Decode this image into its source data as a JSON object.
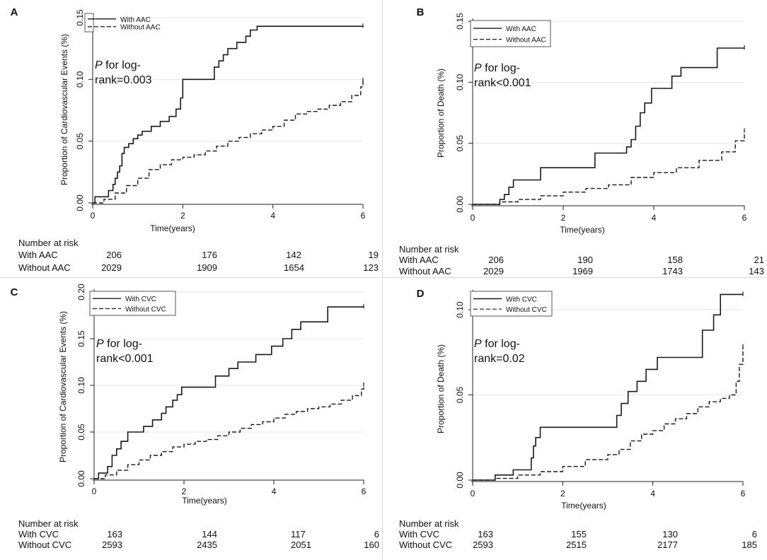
{
  "figure": {
    "panels": [
      {
        "id": "A",
        "letter": "A",
        "pvalue_italic": "P",
        "pvalue_line1": " for log-",
        "pvalue_line2": "rank=0.003",
        "risk_header": "Number at risk",
        "risk_rows": [
          {
            "label": "With AAC",
            "values": [
              "206",
              "176",
              "142",
              "19"
            ]
          },
          {
            "label": "Without AAC",
            "values": [
              "2029",
              "1909",
              "1654",
              "123"
            ]
          }
        ]
      },
      {
        "id": "B",
        "letter": "B",
        "pvalue_italic": "P",
        "pvalue_line1": " for log-",
        "pvalue_line2": "rank<0.001",
        "risk_header": "Number at risk",
        "risk_rows": [
          {
            "label": "With AAC",
            "values": [
              "206",
              "190",
              "158",
              "21"
            ]
          },
          {
            "label": "Without AAC",
            "values": [
              "2029",
              "1969",
              "1743",
              "143"
            ]
          }
        ]
      },
      {
        "id": "C",
        "letter": "C",
        "pvalue_italic": "P",
        "pvalue_line1": " for log-",
        "pvalue_line2": "rank<0.001",
        "risk_header": "Number at risk",
        "risk_rows": [
          {
            "label": "With CVC",
            "values": [
              "163",
              "144",
              "117",
              "6"
            ]
          },
          {
            "label": "Without CVC",
            "values": [
              "2593",
              "2435",
              "2051",
              "160"
            ]
          }
        ]
      },
      {
        "id": "D",
        "letter": "D",
        "pvalue_italic": "P",
        "pvalue_line1": " for log-",
        "pvalue_line2": "rank=0.02",
        "risk_header": "Number at risk",
        "risk_rows": [
          {
            "label": "With CVC",
            "values": [
              "163",
              "155",
              "130",
              "6"
            ]
          },
          {
            "label": "Without CVC",
            "values": [
              "2593",
              "2515",
              "2177",
              "185"
            ]
          }
        ]
      }
    ]
  },
  "chart_data": [
    {
      "panel": "A",
      "type": "line",
      "step": true,
      "xlabel": "Time(years)",
      "ylabel": "Proportion of Cardiovascular Events (%)",
      "xlim": [
        0,
        6
      ],
      "ylim": [
        0,
        0.15
      ],
      "xticks": [
        0,
        2,
        4,
        6
      ],
      "yticks": [
        0,
        0.05,
        0.1,
        0.15
      ],
      "ytick_labels": [
        "0.00",
        "0.05",
        "0.10",
        "0.15"
      ],
      "legend_position": "top-left",
      "series": [
        {
          "name": "With AAC",
          "style": "solid",
          "x": [
            0,
            0.05,
            0.35,
            0.45,
            0.5,
            0.55,
            0.6,
            0.65,
            0.7,
            0.8,
            0.9,
            1.0,
            1.1,
            1.3,
            1.5,
            1.7,
            1.85,
            1.95,
            2.0,
            2.55,
            2.7,
            2.8,
            2.9,
            3.0,
            3.2,
            3.4,
            3.5,
            3.65,
            6.0
          ],
          "y": [
            0,
            0.005,
            0.01,
            0.015,
            0.02,
            0.025,
            0.03,
            0.04,
            0.045,
            0.048,
            0.052,
            0.055,
            0.058,
            0.062,
            0.066,
            0.07,
            0.076,
            0.085,
            0.1,
            0.1,
            0.11,
            0.115,
            0.12,
            0.125,
            0.13,
            0.135,
            0.14,
            0.143,
            0.143
          ]
        },
        {
          "name": "Without AAC",
          "style": "dashed",
          "x": [
            0,
            0.25,
            0.5,
            0.75,
            1.0,
            1.25,
            1.5,
            1.75,
            2.0,
            2.25,
            2.5,
            2.75,
            3.0,
            3.25,
            3.5,
            3.75,
            4.0,
            4.25,
            4.5,
            4.75,
            5.0,
            5.25,
            5.5,
            5.75,
            5.95,
            6.0
          ],
          "y": [
            0,
            0.003,
            0.008,
            0.014,
            0.02,
            0.027,
            0.031,
            0.035,
            0.037,
            0.039,
            0.042,
            0.046,
            0.05,
            0.053,
            0.056,
            0.059,
            0.062,
            0.067,
            0.072,
            0.074,
            0.076,
            0.079,
            0.082,
            0.087,
            0.094,
            0.099
          ]
        }
      ]
    },
    {
      "panel": "B",
      "type": "line",
      "step": true,
      "xlabel": "Time(years)",
      "ylabel": "Proportion of Death (%)",
      "xlim": [
        0,
        6
      ],
      "ylim": [
        0,
        0.15
      ],
      "xticks": [
        0,
        2,
        4,
        6
      ],
      "yticks": [
        0,
        0.05,
        0.1,
        0.15
      ],
      "ytick_labels": [
        "0.00",
        "0.05",
        "0.10",
        "0.15"
      ],
      "legend_position": "top-left",
      "series": [
        {
          "name": "With AAC",
          "style": "solid",
          "x": [
            0,
            0.6,
            0.7,
            0.8,
            0.9,
            1.5,
            2.7,
            3.4,
            3.5,
            3.6,
            3.7,
            3.8,
            3.95,
            4.1,
            4.4,
            4.6,
            5.4,
            6.0
          ],
          "y": [
            0,
            0.004,
            0.008,
            0.014,
            0.02,
            0.03,
            0.042,
            0.047,
            0.053,
            0.064,
            0.075,
            0.083,
            0.095,
            0.095,
            0.105,
            0.112,
            0.128,
            0.128
          ]
        },
        {
          "name": "Without AAC",
          "style": "dashed",
          "x": [
            0,
            0.6,
            1.0,
            1.5,
            2.0,
            2.5,
            3.0,
            3.5,
            4.0,
            4.5,
            5.0,
            5.5,
            5.8,
            6.0
          ],
          "y": [
            0,
            0.002,
            0.004,
            0.007,
            0.01,
            0.013,
            0.016,
            0.022,
            0.026,
            0.03,
            0.036,
            0.043,
            0.052,
            0.06
          ]
        }
      ]
    },
    {
      "panel": "C",
      "type": "line",
      "step": true,
      "xlabel": "Time(years)",
      "ylabel": "Proportion of Cardiovascular Events (%)",
      "xlim": [
        0,
        6
      ],
      "ylim": [
        0,
        0.2
      ],
      "xticks": [
        0,
        2,
        4,
        6
      ],
      "yticks": [
        0,
        0.05,
        0.1,
        0.15,
        0.2
      ],
      "ytick_labels": [
        "0.00",
        "0.05",
        "0.10",
        "0.15",
        "0.20"
      ],
      "legend_position": "top-left",
      "series": [
        {
          "name": "With CVC",
          "style": "solid",
          "x": [
            0,
            0.1,
            0.3,
            0.4,
            0.5,
            0.6,
            0.75,
            1.1,
            1.3,
            1.5,
            1.6,
            1.75,
            1.85,
            1.95,
            2.7,
            3.0,
            3.2,
            3.6,
            3.95,
            4.2,
            4.4,
            4.6,
            5.2,
            6.0
          ],
          "y": [
            0,
            0.006,
            0.013,
            0.025,
            0.032,
            0.04,
            0.05,
            0.056,
            0.063,
            0.07,
            0.077,
            0.084,
            0.09,
            0.098,
            0.11,
            0.118,
            0.125,
            0.133,
            0.142,
            0.15,
            0.16,
            0.168,
            0.184,
            0.184
          ]
        },
        {
          "name": "Without CVC",
          "style": "dashed",
          "x": [
            0,
            0.25,
            0.5,
            0.75,
            1.0,
            1.25,
            1.5,
            1.75,
            2.0,
            2.25,
            2.5,
            2.75,
            3.0,
            3.25,
            3.5,
            3.75,
            4.0,
            4.25,
            4.5,
            4.75,
            5.0,
            5.25,
            5.5,
            5.75,
            5.95,
            6.0
          ],
          "y": [
            0,
            0.004,
            0.009,
            0.015,
            0.02,
            0.025,
            0.029,
            0.034,
            0.037,
            0.04,
            0.042,
            0.046,
            0.05,
            0.054,
            0.058,
            0.061,
            0.065,
            0.069,
            0.072,
            0.075,
            0.077,
            0.08,
            0.084,
            0.089,
            0.096,
            0.1
          ]
        }
      ]
    },
    {
      "panel": "D",
      "type": "line",
      "step": true,
      "xlabel": "Time(years)",
      "ylabel": "Proportion of Death (%)",
      "xlim": [
        0,
        6
      ],
      "ylim": [
        0,
        0.11
      ],
      "xticks": [
        0,
        2,
        4,
        6
      ],
      "yticks": [
        0,
        0.05,
        0.1
      ],
      "ytick_labels": [
        "0.00",
        "0.05",
        "0.10"
      ],
      "legend_position": "top-left",
      "series": [
        {
          "name": "With CVC",
          "style": "solid",
          "x": [
            0,
            0.5,
            0.9,
            1.3,
            1.35,
            1.4,
            1.5,
            3.2,
            3.3,
            3.45,
            3.65,
            3.85,
            4.1,
            5.1,
            5.35,
            5.5,
            6.0
          ],
          "y": [
            0,
            0.003,
            0.006,
            0.013,
            0.02,
            0.025,
            0.031,
            0.038,
            0.045,
            0.052,
            0.058,
            0.065,
            0.072,
            0.088,
            0.097,
            0.109,
            0.109
          ]
        },
        {
          "name": "Without CVC",
          "style": "dashed",
          "x": [
            0,
            0.5,
            1.0,
            1.5,
            2.0,
            2.5,
            3.0,
            3.25,
            3.5,
            3.75,
            4.0,
            4.25,
            4.5,
            4.75,
            5.0,
            5.25,
            5.5,
            5.7,
            5.85,
            5.92,
            6.0
          ],
          "y": [
            0,
            0.001,
            0.003,
            0.005,
            0.008,
            0.012,
            0.015,
            0.018,
            0.023,
            0.027,
            0.029,
            0.033,
            0.036,
            0.039,
            0.043,
            0.046,
            0.048,
            0.05,
            0.058,
            0.068,
            0.078
          ]
        }
      ]
    }
  ]
}
